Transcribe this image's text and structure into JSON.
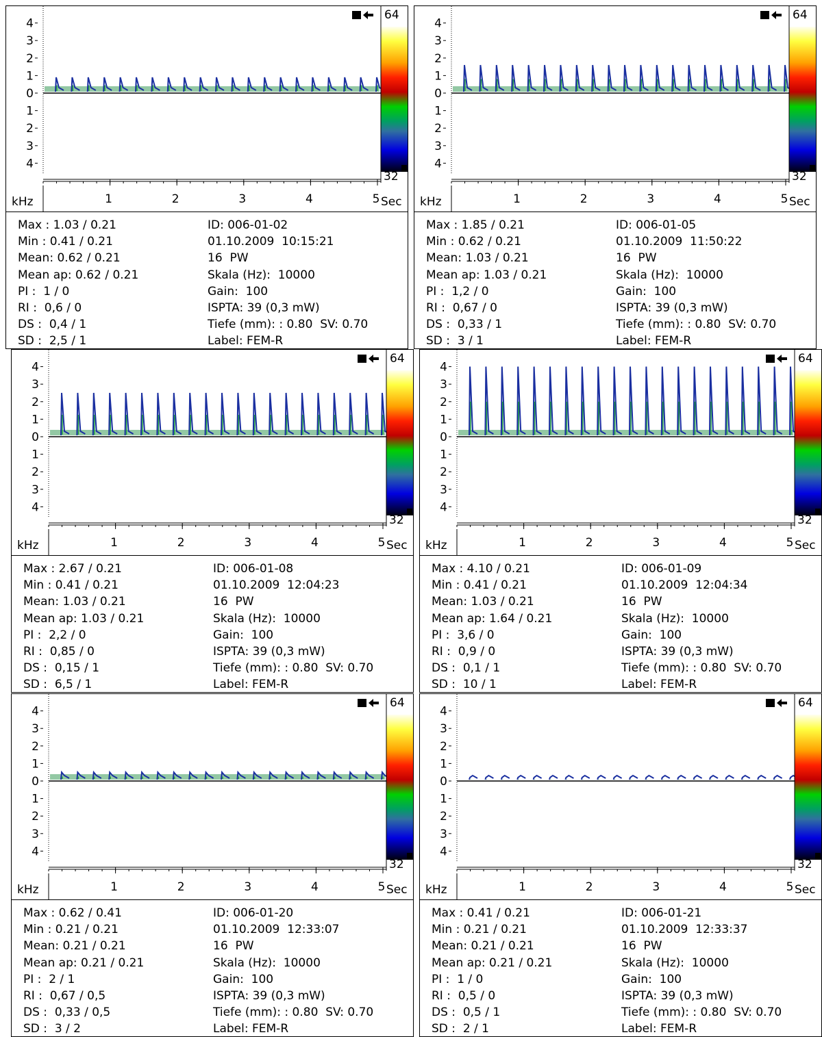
{
  "axis": {
    "y_labels": [
      "4",
      "3",
      "2",
      "1",
      "0",
      "1",
      "2",
      "3",
      "4"
    ],
    "x_labels": [
      "1",
      "2",
      "3",
      "4",
      "5"
    ],
    "x_unit": "Sec",
    "y_unit": "kHz",
    "scale_top": "64",
    "scale_bottom": "32"
  },
  "panels": [
    {
      "spike_khz": 0.9,
      "left": [
        "Max : 1.03 / 0.21",
        "Min : 0.41 / 0.21",
        "Mean: 0.62 / 0.21",
        "Mean ap: 0.62 / 0.21",
        "PI :  1 / 0",
        "RI :  0,6 / 0",
        "DS :  0,4 / 1",
        "SD :  2,5 / 1"
      ],
      "right": [
        "ID: 006-01-02",
        "01.10.2009  10:15:21",
        "16  PW",
        "Skala (Hz):  10000",
        "Gain:  100",
        "ISPTA: 39 (0,3 mW)",
        "Tiefe (mm): : 0.80  SV: 0.70",
        "Label: FEM-R"
      ]
    },
    {
      "spike_khz": 1.6,
      "left": [
        "Max : 1.85 / 0.21",
        "Min : 0.62 / 0.21",
        "Mean: 1.03 / 0.21",
        "Mean ap: 1.03 / 0.21",
        "PI :  1,2 / 0",
        "RI :  0,67 / 0",
        "DS :  0,33 / 1",
        "SD :  3 / 1"
      ],
      "right": [
        "ID: 006-01-05",
        "01.10.2009  11:50:22",
        "16  PW",
        "Skala (Hz):  10000",
        "Gain:  100",
        "ISPTA: 39 (0,3 mW)",
        "Tiefe (mm): : 0.80  SV: 0.70",
        "Label: FEM-R"
      ]
    },
    {
      "spike_khz": 2.5,
      "left": [
        "Max : 2.67 / 0.21",
        "Min : 0.41 / 0.21",
        "Mean: 1.03 / 0.21",
        "Mean ap: 1.03 / 0.21",
        "PI :  2,2 / 0",
        "RI :  0,85 / 0",
        "DS :  0,15 / 1",
        "SD :  6,5 / 1"
      ],
      "right": [
        "ID: 006-01-08",
        "01.10.2009  12:04:23",
        "16  PW",
        "Skala (Hz):  10000",
        "Gain:  100",
        "ISPTA: 39 (0,3 mW)",
        "Tiefe (mm): : 0.80  SV: 0.70",
        "Label: FEM-R"
      ]
    },
    {
      "spike_khz": 4.0,
      "left": [
        "Max : 4.10 / 0.21",
        "Min : 0.41 / 0.21",
        "Mean: 1.03 / 0.21",
        "Mean ap: 1.64 / 0.21",
        "PI :  3,6 / 0",
        "RI :  0,9 / 0",
        "DS :  0,1 / 1",
        "SD :  10 / 1"
      ],
      "right": [
        "ID: 006-01-09",
        "01.10.2009  12:04:34",
        "16  PW",
        "Skala (Hz):  10000",
        "Gain:  100",
        "ISPTA: 39 (0,3 mW)",
        "Tiefe (mm): : 0.80  SV: 0.70",
        "Label: FEM-R"
      ]
    },
    {
      "spike_khz": 0.5,
      "left": [
        "Max : 0.62 / 0.41",
        "Min : 0.21 / 0.21",
        "Mean: 0.21 / 0.21",
        "Mean ap: 0.21 / 0.21",
        "PI :  2 / 1",
        "RI :  0,67 / 0,5",
        "DS :  0,33 / 0,5",
        "SD :  3 / 2"
      ],
      "right": [
        "ID: 006-01-20",
        "01.10.2009  12:33:07",
        "16  PW",
        "Skala (Hz):  10000",
        "Gain:  100",
        "ISPTA: 39 (0,3 mW)",
        "Tiefe (mm): : 0.80  SV: 0.70",
        "Label: FEM-R"
      ]
    },
    {
      "spike_khz": 0.2,
      "left": [
        "Max : 0.41 / 0.21",
        "Min : 0.21 / 0.21",
        "Mean: 0.21 / 0.21",
        "Mean ap: 0.21 / 0.21",
        "PI :  1 / 0",
        "RI :  0,5 / 0",
        "DS :  0,5 / 1",
        "SD :  2 / 1"
      ],
      "right": [
        "ID: 006-01-21",
        "01.10.2009  12:33:37",
        "16  PW",
        "Skala (Hz):  10000",
        "Gain:  100",
        "ISPTA: 39 (0,3 mW)",
        "Tiefe (mm): : 0.80  SV: 0.70",
        "Label: FEM-R"
      ]
    }
  ]
}
